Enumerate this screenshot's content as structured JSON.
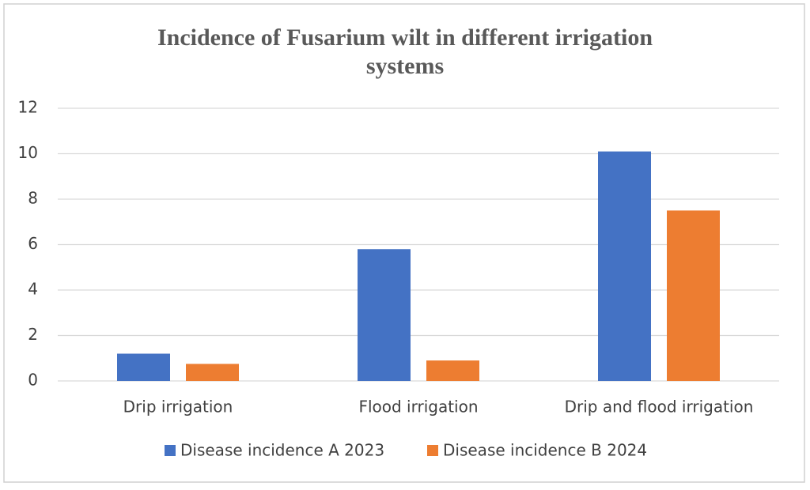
{
  "chart_data": {
    "type": "bar",
    "title": "Incidence of Fusarium  wilt in different irrigation systems",
    "categories": [
      "Drip irrigation",
      "Flood irrigation",
      "Drip and flood irrigation"
    ],
    "series": [
      {
        "name": "Disease incidence  A 2023",
        "color": "#4472c4",
        "values": [
          1.2,
          5.8,
          10.1
        ]
      },
      {
        "name": "Disease incidence  B 2024",
        "color": "#ed7d31",
        "values": [
          0.75,
          0.9,
          7.5
        ]
      }
    ],
    "ylim": [
      0,
      12
    ],
    "yticks": [
      0,
      2,
      4,
      6,
      8,
      10,
      12
    ],
    "grid": true,
    "legend": "bottom"
  }
}
